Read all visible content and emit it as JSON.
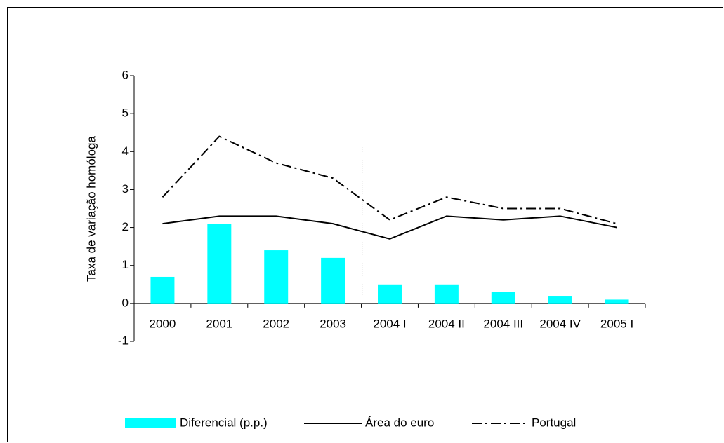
{
  "chart_data": {
    "type": "bar",
    "y_label": "Taxa de variação homóloga",
    "categories": [
      "2000",
      "2001",
      "2002",
      "2003",
      "2004 I",
      "2004 II",
      "2004 III",
      "2004 IV",
      "2005 I"
    ],
    "series": [
      {
        "name": "Diferencial (p.p.)",
        "type": "bar",
        "color": "#00ffff",
        "values": [
          0.7,
          2.1,
          1.4,
          1.2,
          0.5,
          0.5,
          0.3,
          0.2,
          0.1
        ]
      },
      {
        "name": "Área do euro",
        "type": "line",
        "color": "#000000",
        "line_style": "solid",
        "values": [
          2.1,
          2.3,
          2.3,
          2.1,
          1.7,
          2.3,
          2.2,
          2.3,
          2.0
        ]
      },
      {
        "name": "Portugal",
        "type": "line",
        "color": "#000000",
        "line_style": "dash-dot",
        "values": [
          2.8,
          4.4,
          3.7,
          3.3,
          2.2,
          2.8,
          2.5,
          2.5,
          2.1
        ]
      }
    ],
    "ylim": [
      -1,
      6
    ],
    "yticks": [
      -1,
      0,
      1,
      2,
      3,
      4,
      5,
      6
    ],
    "legend": "bottom"
  }
}
